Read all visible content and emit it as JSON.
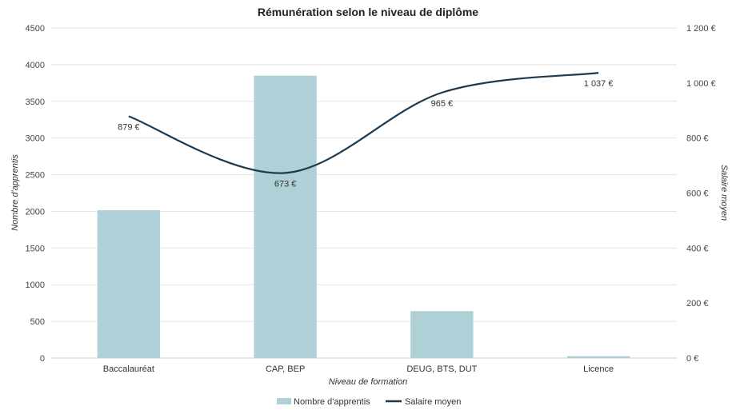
{
  "chart_data": {
    "type": "bar",
    "title": "Rémunération selon le niveau de diplôme",
    "xlabel": "Niveau de formation",
    "ylabel": "Nombre d'apprentis",
    "y2label": "Salaire moyen",
    "categories": [
      "Baccalauréat",
      "CAP, BEP",
      "DEUG, BTS, DUT",
      "Licence"
    ],
    "ylim": [
      0,
      4500
    ],
    "y_ticks": [
      "0",
      "500",
      "1000",
      "1500",
      "2000",
      "2500",
      "3000",
      "3500",
      "4000",
      "4500"
    ],
    "y2lim": [
      0,
      1200
    ],
    "y2_ticks": [
      "0 €",
      "200 €",
      "400 €",
      "600 €",
      "800 €",
      "1 000 €",
      "1 200 €"
    ],
    "grid": true,
    "legend_position": "bottom",
    "series": [
      {
        "name": "Nombre d'apprentis",
        "type": "bar",
        "axis": "left",
        "color": "#aed0d6",
        "values": [
          2015,
          3850,
          640,
          25
        ]
      },
      {
        "name": "Salaire moyen",
        "type": "line",
        "axis": "right",
        "color": "#1d3a4e",
        "values": [
          879,
          673,
          965,
          1037
        ],
        "labels": [
          "879 €",
          "673 €",
          "965 €",
          "1 037 €"
        ]
      }
    ]
  }
}
